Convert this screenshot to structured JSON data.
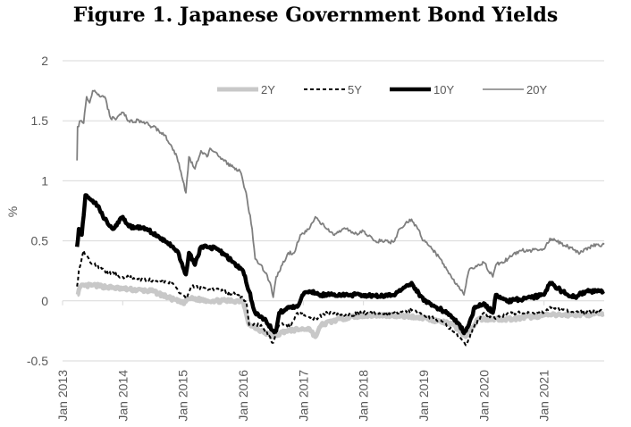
{
  "chart_data": {
    "type": "line",
    "title": "Figure 1.  Japanese Government Bond Yields",
    "xlabel": "",
    "ylabel": "%",
    "ylim": [
      -0.5,
      2
    ],
    "xlim": [
      2013.0,
      2022.0
    ],
    "yticks": [
      {
        "v": 2,
        "label": "2"
      },
      {
        "v": 1.5,
        "label": "1.5"
      },
      {
        "v": 1,
        "label": "1"
      },
      {
        "v": 0.5,
        "label": "0.5"
      },
      {
        "v": 0,
        "label": "0"
      },
      {
        "v": -0.5,
        "label": "-0.5"
      }
    ],
    "xticks": [
      {
        "v": 2013,
        "label": "Jan 2013"
      },
      {
        "v": 2014,
        "label": "Jan 2014"
      },
      {
        "v": 2015,
        "label": "Jan 2015"
      },
      {
        "v": 2016,
        "label": "Jan 2016"
      },
      {
        "v": 2017,
        "label": "Jan 2017"
      },
      {
        "v": 2018,
        "label": "Jan 2018"
      },
      {
        "v": 2019,
        "label": "Jan 2019"
      },
      {
        "v": 2020,
        "label": "Jan 2020"
      },
      {
        "v": 2021,
        "label": "Jan 2021"
      }
    ],
    "grid": true,
    "legend_position": "top",
    "series": [
      {
        "name": "2Y",
        "color": "#c8c8c8",
        "style": "thick",
        "x": [
          2013.24,
          2013.3,
          2013.5,
          2014.0,
          2014.5,
          2015.0,
          2015.1,
          2015.5,
          2016.0,
          2016.1,
          2016.3,
          2016.5,
          2016.7,
          2017.1,
          2017.2,
          2017.3,
          2017.6,
          2018.0,
          2018.5,
          2019.0,
          2019.5,
          2019.7,
          2019.9,
          2020.2,
          2020.5,
          2021.0,
          2022.0
        ],
        "y": [
          0.05,
          0.12,
          0.13,
          0.1,
          0.08,
          -0.02,
          0.02,
          0.0,
          0.0,
          -0.2,
          -0.25,
          -0.3,
          -0.25,
          -0.23,
          -0.3,
          -0.2,
          -0.15,
          -0.12,
          -0.12,
          -0.14,
          -0.2,
          -0.3,
          -0.15,
          -0.15,
          -0.15,
          -0.12,
          -0.11
        ]
      },
      {
        "name": "5Y",
        "color": "#000000",
        "style": "dashed",
        "x": [
          2013.24,
          2013.27,
          2013.35,
          2013.45,
          2013.7,
          2014.0,
          2014.5,
          2014.8,
          2015.0,
          2015.05,
          2015.15,
          2015.5,
          2015.9,
          2016.05,
          2016.1,
          2016.3,
          2016.5,
          2016.6,
          2016.8,
          2016.9,
          2017.2,
          2017.4,
          2017.7,
          2018.0,
          2018.5,
          2018.8,
          2019.0,
          2019.3,
          2019.6,
          2019.7,
          2019.85,
          2020.0,
          2020.2,
          2020.4,
          2021.0,
          2021.1,
          2021.5,
          2022.0
        ],
        "y": [
          0.12,
          0.25,
          0.42,
          0.33,
          0.25,
          0.2,
          0.17,
          0.15,
          0.05,
          0.02,
          0.12,
          0.1,
          0.05,
          0.0,
          -0.2,
          -0.2,
          -0.35,
          -0.2,
          -0.2,
          -0.1,
          -0.15,
          -0.1,
          -0.12,
          -0.1,
          -0.1,
          -0.08,
          -0.12,
          -0.17,
          -0.3,
          -0.37,
          -0.2,
          -0.1,
          -0.15,
          -0.1,
          -0.1,
          -0.05,
          -0.1,
          -0.08
        ]
      },
      {
        "name": "10Y",
        "color": "#000000",
        "style": "thick",
        "x": [
          2013.24,
          2013.27,
          2013.32,
          2013.38,
          2013.45,
          2013.55,
          2013.7,
          2013.85,
          2014.0,
          2014.1,
          2014.4,
          2014.7,
          2014.9,
          2015.05,
          2015.1,
          2015.2,
          2015.3,
          2015.45,
          2015.6,
          2015.8,
          2016.0,
          2016.1,
          2016.2,
          2016.35,
          2016.5,
          2016.55,
          2016.6,
          2016.8,
          2016.9,
          2017.0,
          2017.1,
          2017.3,
          2017.5,
          2017.7,
          2018.0,
          2018.2,
          2018.5,
          2018.7,
          2018.8,
          2019.0,
          2019.2,
          2019.4,
          2019.6,
          2019.67,
          2019.75,
          2019.85,
          2020.0,
          2020.15,
          2020.2,
          2020.4,
          2020.7,
          2021.0,
          2021.1,
          2021.3,
          2021.5,
          2021.7,
          2022.0
        ],
        "y": [
          0.45,
          0.6,
          0.55,
          0.88,
          0.85,
          0.82,
          0.68,
          0.6,
          0.7,
          0.62,
          0.6,
          0.5,
          0.42,
          0.22,
          0.4,
          0.3,
          0.45,
          0.45,
          0.42,
          0.34,
          0.25,
          0.08,
          -0.1,
          -0.15,
          -0.25,
          -0.25,
          -0.1,
          -0.05,
          -0.05,
          0.05,
          0.08,
          0.05,
          0.05,
          0.05,
          0.05,
          0.04,
          0.05,
          0.12,
          0.15,
          0.0,
          -0.05,
          -0.1,
          -0.2,
          -0.27,
          -0.2,
          -0.05,
          -0.02,
          -0.1,
          0.05,
          0.0,
          0.02,
          0.05,
          0.15,
          0.08,
          0.03,
          0.08,
          0.08
        ]
      },
      {
        "name": "20Y",
        "color": "#7f7f7f",
        "style": "thin",
        "x": [
          2013.24,
          2013.25,
          2013.3,
          2013.35,
          2013.4,
          2013.45,
          2013.5,
          2013.6,
          2013.7,
          2013.8,
          2013.9,
          2014.0,
          2014.1,
          2014.3,
          2014.5,
          2014.7,
          2014.8,
          2014.9,
          2015.0,
          2015.05,
          2015.1,
          2015.2,
          2015.3,
          2015.4,
          2015.45,
          2015.6,
          2015.8,
          2015.95,
          2016.05,
          2016.15,
          2016.2,
          2016.3,
          2016.45,
          2016.5,
          2016.55,
          2016.65,
          2016.75,
          2016.85,
          2016.95,
          2017.1,
          2017.2,
          2017.35,
          2017.5,
          2017.7,
          2017.9,
          2018.0,
          2018.2,
          2018.5,
          2018.6,
          2018.8,
          2018.9,
          2019.0,
          2019.2,
          2019.4,
          2019.6,
          2019.67,
          2019.75,
          2019.9,
          2020.0,
          2020.15,
          2020.2,
          2020.4,
          2020.6,
          2020.8,
          2021.0,
          2021.1,
          2021.2,
          2021.4,
          2021.6,
          2021.8,
          2022.0
        ],
        "y": [
          1.17,
          1.45,
          1.5,
          1.48,
          1.7,
          1.65,
          1.75,
          1.72,
          1.7,
          1.52,
          1.52,
          1.57,
          1.5,
          1.5,
          1.45,
          1.38,
          1.3,
          1.2,
          1.0,
          0.9,
          1.2,
          1.1,
          1.25,
          1.2,
          1.27,
          1.2,
          1.12,
          1.08,
          0.9,
          0.6,
          0.35,
          0.3,
          0.15,
          0.03,
          0.2,
          0.3,
          0.4,
          0.4,
          0.55,
          0.6,
          0.7,
          0.62,
          0.55,
          0.6,
          0.55,
          0.58,
          0.5,
          0.49,
          0.6,
          0.68,
          0.6,
          0.5,
          0.4,
          0.25,
          0.1,
          0.05,
          0.25,
          0.3,
          0.32,
          0.2,
          0.3,
          0.35,
          0.42,
          0.42,
          0.43,
          0.52,
          0.5,
          0.45,
          0.4,
          0.46,
          0.47
        ]
      }
    ]
  }
}
